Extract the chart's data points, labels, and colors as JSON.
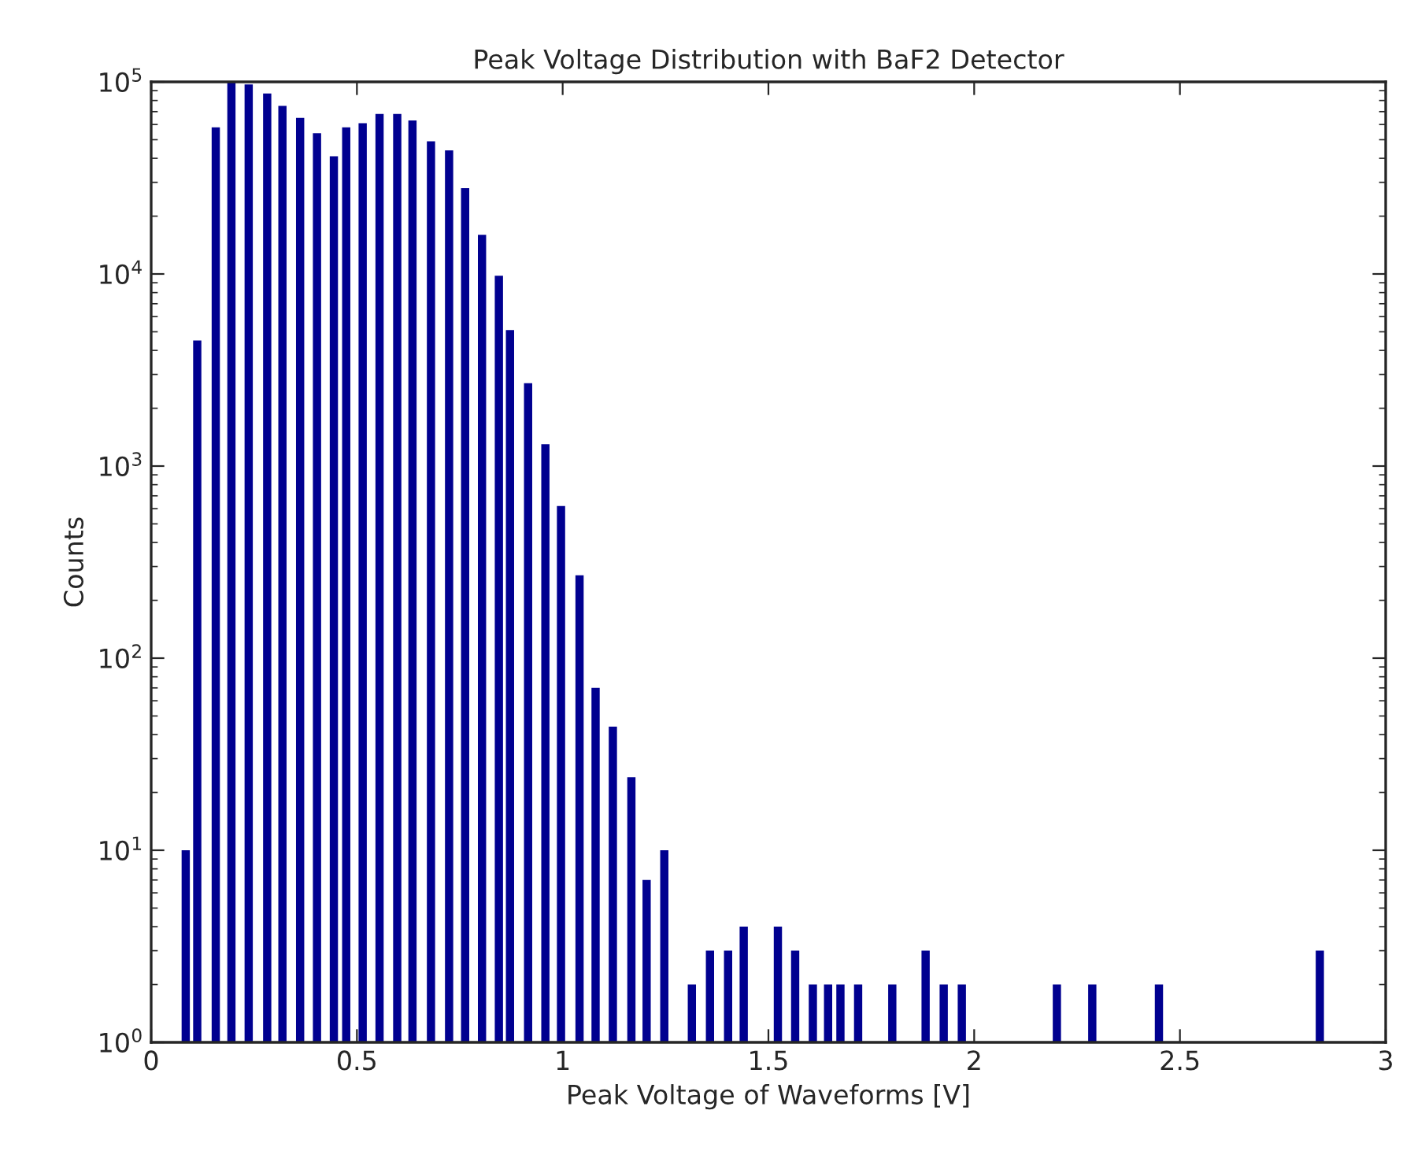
{
  "chart_data": {
    "type": "bar",
    "title": "Peak Voltage Distribution with BaF2 Detector",
    "xlabel": "Peak Voltage of Waveforms [V]",
    "ylabel": "Counts",
    "x": [
      0.084,
      0.112,
      0.157,
      0.195,
      0.237,
      0.282,
      0.319,
      0.362,
      0.403,
      0.444,
      0.474,
      0.514,
      0.555,
      0.598,
      0.635,
      0.68,
      0.724,
      0.763,
      0.804,
      0.845,
      0.872,
      0.916,
      0.958,
      0.996,
      1.041,
      1.08,
      1.122,
      1.167,
      1.204,
      1.247,
      1.314,
      1.358,
      1.402,
      1.44,
      1.523,
      1.565,
      1.608,
      1.645,
      1.675,
      1.718,
      1.801,
      1.882,
      1.926,
      1.97,
      2.201,
      2.287,
      2.449,
      2.84
    ],
    "values": [
      10,
      4500,
      58000,
      100000,
      97000,
      87000,
      75000,
      65000,
      54000,
      41000,
      58000,
      61000,
      68000,
      68000,
      63000,
      49000,
      44000,
      28000,
      16000,
      9800,
      5100,
      2700,
      1300,
      620,
      270,
      70,
      44,
      24,
      7,
      10,
      2,
      3,
      3,
      4,
      4,
      3,
      2,
      2,
      2,
      2,
      2,
      3,
      2,
      2,
      2,
      2,
      2,
      3
    ],
    "color": "#000090",
    "log": "y",
    "grid": false,
    "xlim": [
      0,
      3
    ],
    "xticks": [
      0,
      0.5,
      1,
      1.5,
      2,
      2.5,
      3
    ],
    "ylim": [
      1,
      100000
    ],
    "yticks": [
      {
        "value": 1,
        "label": "10$^{0}$"
      },
      {
        "value": 10,
        "label": "10$^{1}$"
      },
      {
        "value": 100,
        "label": "10$^{2}$"
      },
      {
        "value": 1000,
        "label": "10$^{3}$"
      },
      {
        "value": 10000,
        "label": "10$^{4}$"
      },
      {
        "value": 100000,
        "label": "10$^{5}$"
      }
    ]
  }
}
